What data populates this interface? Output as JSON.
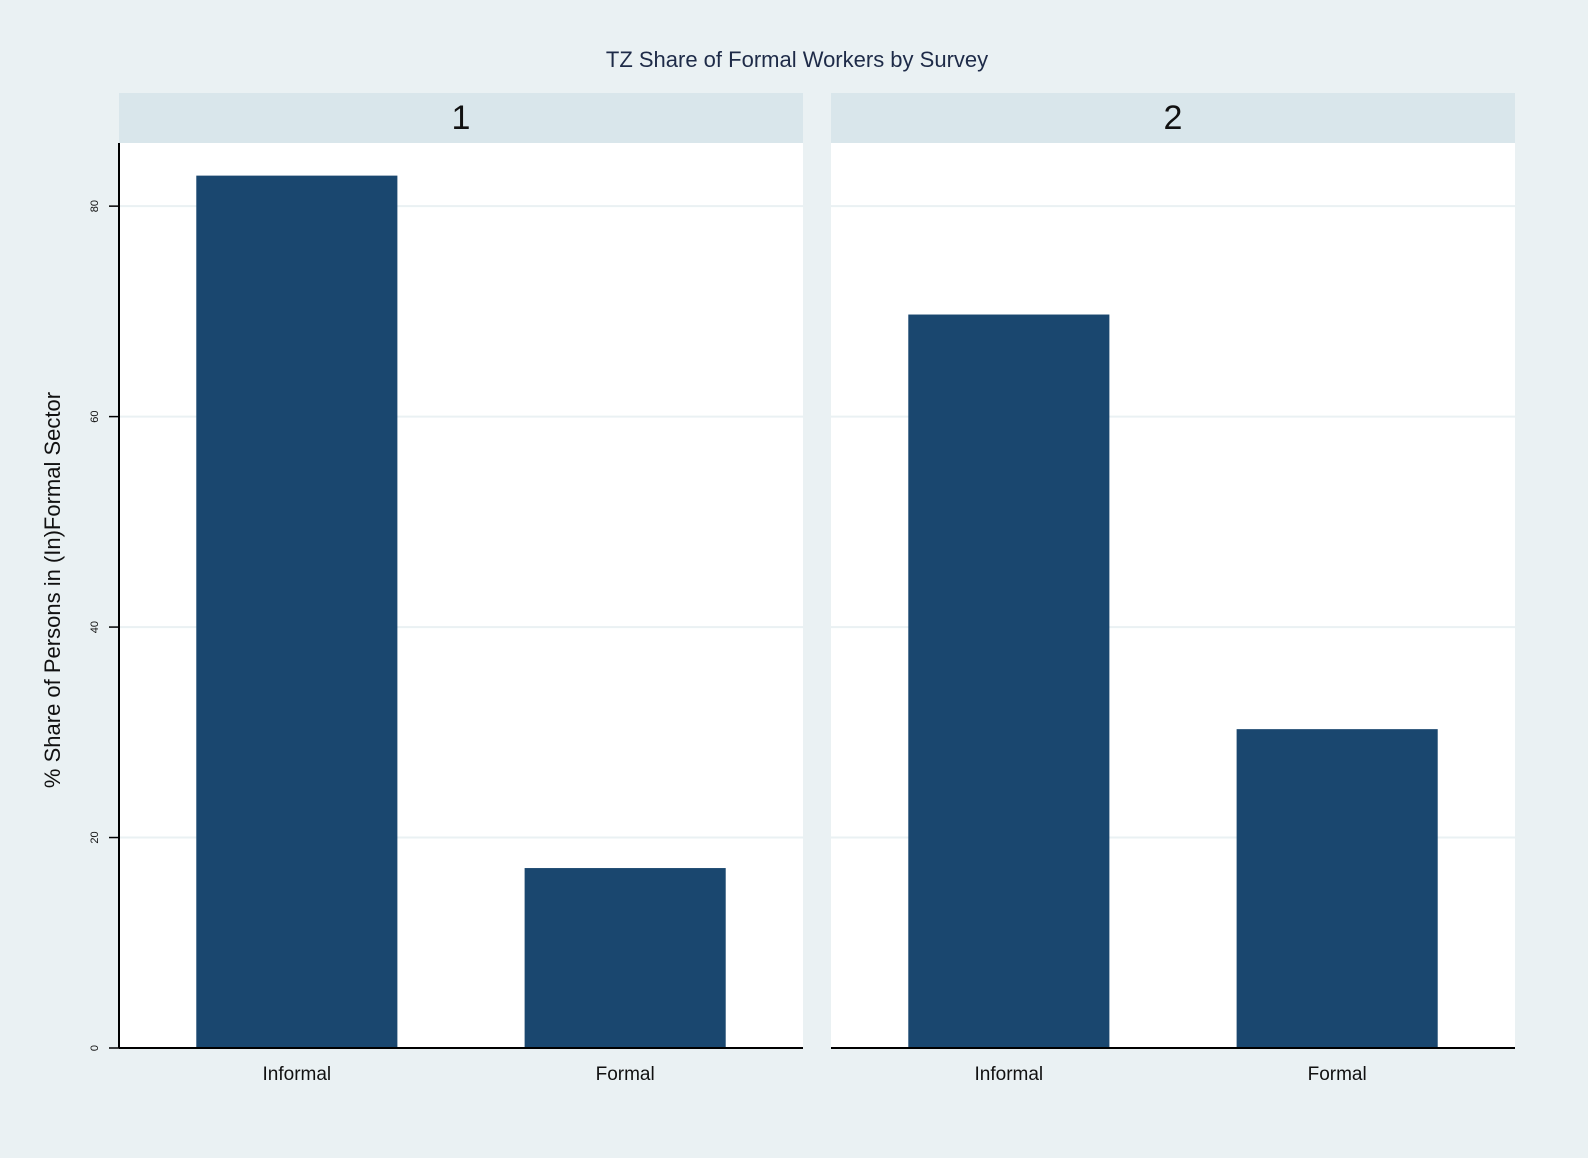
{
  "chart_data": {
    "type": "bar",
    "title": "TZ Share of Formal Workers by Survey",
    "y_label": "% Share of Persons in (In)Formal Sector",
    "color": "#1a476f",
    "grid": true,
    "ylim": [
      0,
      86
    ],
    "yticks": [
      0,
      20,
      40,
      60,
      80
    ],
    "panels": [
      {
        "title": "1",
        "categories": [
          "Informal",
          "Formal"
        ],
        "values": [
          82.9,
          17.1
        ]
      },
      {
        "title": "2",
        "categories": [
          "Informal",
          "Formal"
        ],
        "values": [
          69.7,
          30.3
        ]
      }
    ]
  }
}
